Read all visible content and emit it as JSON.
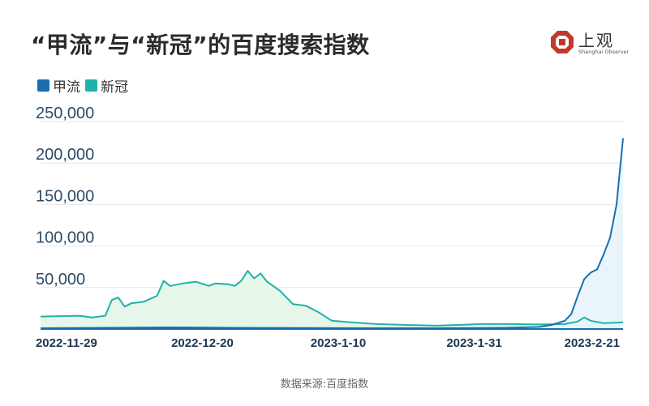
{
  "header": {
    "title": "“甲流”与“新冠”的百度搜索指数"
  },
  "logo": {
    "text": "上观",
    "subtext": "Shanghai Observer",
    "color": "#c0392b"
  },
  "source": "数据来源:百度指数",
  "chart_data": {
    "type": "area",
    "title": "“甲流”与“新冠”的百度搜索指数",
    "xlabel": "",
    "ylabel": "",
    "ylim": [
      0,
      250000
    ],
    "yticks": [
      50000,
      100000,
      150000,
      200000,
      250000
    ],
    "ytick_labels": [
      "50,000",
      "100,000",
      "150,000",
      "200,000",
      "250,000"
    ],
    "x_range": [
      "2022-11-25",
      "2023-2-23"
    ],
    "xticks": [
      "2022-11-29",
      "2022-12-20",
      "2023-1-10",
      "2023-1-31",
      "2023-2-21"
    ],
    "grid": true,
    "legend": "top-left",
    "series": [
      {
        "name": "甲流",
        "color": "#1a6fae",
        "fill": "#eaf5fb",
        "points": [
          [
            "2022-11-25",
            1000
          ],
          [
            "2022-12-05",
            1500
          ],
          [
            "2022-12-15",
            2000
          ],
          [
            "2022-12-25",
            1500
          ],
          [
            "2023-1-05",
            1200
          ],
          [
            "2023-1-15",
            1000
          ],
          [
            "2023-1-25",
            1000
          ],
          [
            "2023-2-05",
            1500
          ],
          [
            "2023-2-10",
            2500
          ],
          [
            "2023-2-12",
            5000
          ],
          [
            "2023-2-14",
            10000
          ],
          [
            "2023-2-15",
            18000
          ],
          [
            "2023-2-16",
            40000
          ],
          [
            "2023-2-17",
            60000
          ],
          [
            "2023-2-18",
            68000
          ],
          [
            "2023-2-19",
            72000
          ],
          [
            "2023-2-20",
            90000
          ],
          [
            "2023-2-21",
            110000
          ],
          [
            "2023-2-22",
            150000
          ],
          [
            "2023-2-23",
            230000
          ]
        ]
      },
      {
        "name": "新冠",
        "color": "#1fb2a8",
        "fill": "#e6f7ea",
        "points": [
          [
            "2022-11-25",
            15000
          ],
          [
            "2022-11-28",
            15500
          ],
          [
            "2022-12-01",
            16000
          ],
          [
            "2022-12-03",
            14000
          ],
          [
            "2022-12-05",
            16000
          ],
          [
            "2022-12-06",
            35000
          ],
          [
            "2022-12-07",
            38000
          ],
          [
            "2022-12-08",
            27000
          ],
          [
            "2022-12-09",
            31000
          ],
          [
            "2022-12-11",
            33000
          ],
          [
            "2022-12-13",
            40000
          ],
          [
            "2022-12-14",
            58000
          ],
          [
            "2022-12-15",
            52000
          ],
          [
            "2022-12-17",
            55000
          ],
          [
            "2022-12-19",
            57000
          ],
          [
            "2022-12-21",
            52000
          ],
          [
            "2022-12-22",
            55000
          ],
          [
            "2022-12-24",
            54000
          ],
          [
            "2022-12-25",
            52000
          ],
          [
            "2022-12-26",
            58000
          ],
          [
            "2022-12-27",
            70000
          ],
          [
            "2022-12-28",
            61000
          ],
          [
            "2022-12-29",
            67000
          ],
          [
            "2022-12-30",
            57000
          ],
          [
            "2023-1-01",
            46000
          ],
          [
            "2023-1-03",
            30000
          ],
          [
            "2023-1-05",
            28000
          ],
          [
            "2023-1-07",
            20000
          ],
          [
            "2023-1-09",
            10000
          ],
          [
            "2023-1-12",
            8000
          ],
          [
            "2023-1-16",
            6000
          ],
          [
            "2023-1-20",
            5000
          ],
          [
            "2023-1-25",
            4000
          ],
          [
            "2023-1-29",
            5000
          ],
          [
            "2023-2-01",
            6000
          ],
          [
            "2023-2-06",
            6000
          ],
          [
            "2023-2-10",
            5500
          ],
          [
            "2023-2-14",
            6000
          ],
          [
            "2023-2-16",
            9000
          ],
          [
            "2023-2-17",
            14000
          ],
          [
            "2023-2-18",
            10000
          ],
          [
            "2023-2-20",
            7000
          ],
          [
            "2023-2-23",
            8000
          ]
        ]
      }
    ]
  }
}
